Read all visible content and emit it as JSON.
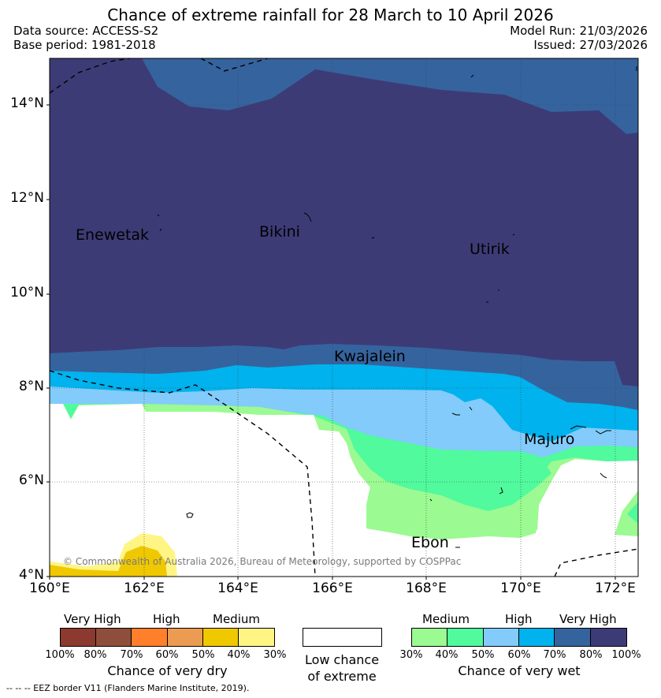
{
  "header": {
    "title": "Chance of extreme rainfall for 28 March to 10 April 2026",
    "data_source": "Data source: ACCESS-S2",
    "base_period": "Base period: 1981-2018",
    "model_run": "Model Run: 21/03/2026",
    "issued": "Issued: 27/03/2026"
  },
  "map": {
    "lat_ticks": [
      "14°N",
      "12°N",
      "10°N",
      "8°N",
      "6°N",
      "4°N"
    ],
    "lon_ticks": [
      "160°E",
      "162°E",
      "164°E",
      "166°E",
      "168°E",
      "170°E",
      "172°E"
    ],
    "places": {
      "enewetak": "Enewetak",
      "bikini": "Bikini",
      "utirik": "Utirik",
      "kwajalein": "Kwajalein",
      "majuro": "Majuro",
      "ebon": "Ebon"
    },
    "copyright": "© Commonwealth of Australia 2026, Bureau of Meteorology, supported by COSPPac"
  },
  "legend": {
    "dry": {
      "category_labels": [
        "Very High",
        "High",
        "Medium"
      ],
      "colors": [
        "#8c3a2f",
        "#8f4e3c",
        "#ff7f2a",
        "#eb9c52",
        "#f0c800",
        "#fff585"
      ],
      "percent_labels": [
        "100%",
        "80%",
        "70%",
        "60%",
        "50%",
        "40%",
        "30%"
      ],
      "caption": "Chance of very dry"
    },
    "low": {
      "color": "#ffffff",
      "caption_line1": "Low chance",
      "caption_line2": "of extreme"
    },
    "wet": {
      "category_labels": [
        "Medium",
        "High",
        "Very High"
      ],
      "colors": [
        "#9bfa91",
        "#50fa9d",
        "#82cbfa",
        "#00b2ed",
        "#35639e",
        "#3d3b76"
      ],
      "percent_labels": [
        "30%",
        "40%",
        "50%",
        "60%",
        "70%",
        "80%",
        "100%"
      ],
      "caption": "Chance of very wet"
    },
    "eez_note": "--  --  -- EEZ border V11 (Flanders Marine Institute, 2019)."
  }
}
